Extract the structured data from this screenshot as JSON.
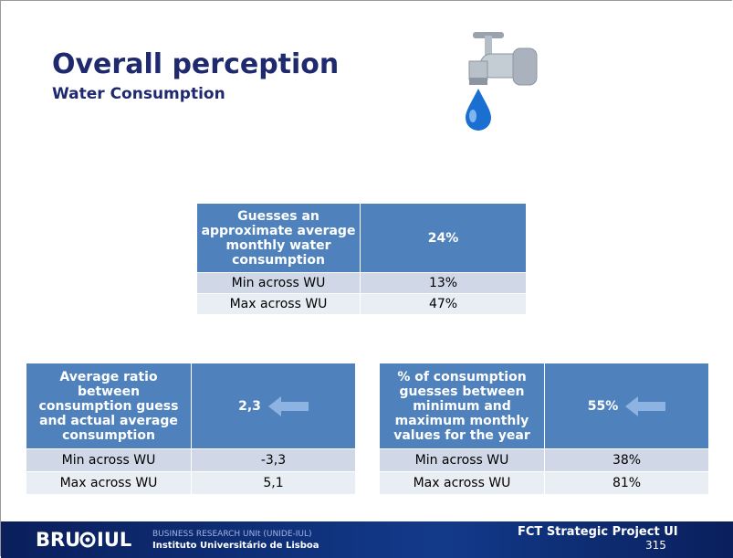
{
  "header": {
    "title": "Overall perception",
    "subtitle": "Water Consumption"
  },
  "tables": [
    {
      "header": [
        "Guesses an approximate average monthly water consumption",
        "24%"
      ],
      "rows": [
        [
          "Min across WU",
          "13%"
        ],
        [
          "Max across WU",
          "47%"
        ]
      ]
    },
    {
      "header": [
        "Average ratio between consumption guess and actual average consumption",
        "2,3"
      ],
      "rows": [
        [
          "Min across WU",
          "-3,3"
        ],
        [
          "Max across WU",
          "5,1"
        ]
      ]
    },
    {
      "header": [
        "% of consumption guesses between minimum and maximum monthly values for the year",
        "55%"
      ],
      "rows": [
        [
          "Min across WU",
          "38%"
        ],
        [
          "Max across WU",
          "81%"
        ]
      ]
    }
  ],
  "footer": {
    "logo_left": "BRU",
    "logo_right": "IUL",
    "unit": "BUSINESS RESEARCH UNIt (UNIDE-IUL)",
    "institute": "Instituto Universitário de Lisboa",
    "project": "FCT Strategic Project UI",
    "project_number": "315"
  }
}
